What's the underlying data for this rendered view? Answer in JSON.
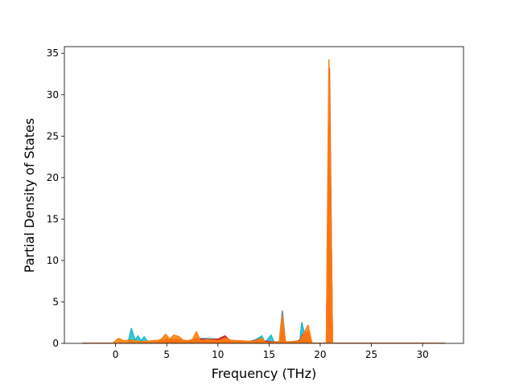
{
  "chart_data": {
    "type": "area",
    "title": "",
    "xlabel": "Frequency (THz)",
    "ylabel": "Partial Density of States",
    "xlim": [
      -5.0,
      34.0
    ],
    "ylim": [
      0,
      35.8
    ],
    "xticks": [
      0,
      5,
      10,
      15,
      20,
      25,
      30
    ],
    "yticks": [
      0,
      5,
      10,
      15,
      20,
      25,
      30,
      35
    ],
    "grid": false,
    "legend": "none",
    "series": [
      {
        "color": "#17becf",
        "points": [
          [
            -3.2,
            0
          ],
          [
            1.2,
            0
          ],
          [
            1.55,
            1.8
          ],
          [
            1.9,
            0.4
          ],
          [
            2.2,
            0.9
          ],
          [
            2.5,
            0.3
          ],
          [
            2.8,
            0.8
          ],
          [
            3.2,
            0.1
          ],
          [
            4.0,
            0.2
          ],
          [
            4.4,
            0.5
          ],
          [
            4.8,
            0.2
          ],
          [
            5.3,
            0.5
          ],
          [
            6.0,
            0.3
          ],
          [
            7.0,
            0.2
          ],
          [
            8.0,
            0.4
          ],
          [
            9.0,
            0.3
          ],
          [
            10.0,
            0.2
          ],
          [
            11.0,
            0.3
          ],
          [
            12.5,
            0.2
          ],
          [
            13.5,
            0.3
          ],
          [
            14.3,
            0.9
          ],
          [
            14.6,
            0.1
          ],
          [
            15.2,
            1.0
          ],
          [
            15.5,
            0.1
          ],
          [
            16.0,
            0.1
          ],
          [
            16.3,
            1.8
          ],
          [
            16.6,
            0.1
          ],
          [
            18.0,
            0.2
          ],
          [
            18.2,
            2.5
          ],
          [
            18.5,
            1.0
          ],
          [
            18.8,
            0.4
          ],
          [
            19.2,
            0
          ],
          [
            20.7,
            0
          ],
          [
            20.9,
            13.0
          ],
          [
            21.1,
            0
          ],
          [
            32.2,
            0
          ]
        ]
      },
      {
        "color": "#7f7f7f",
        "points": [
          [
            -3.2,
            0
          ],
          [
            3.5,
            0
          ],
          [
            4.0,
            0.3
          ],
          [
            5.0,
            0.3
          ],
          [
            6.0,
            0.5
          ],
          [
            7.0,
            0.3
          ],
          [
            8.0,
            0.6
          ],
          [
            9.0,
            0.6
          ],
          [
            10.0,
            0.5
          ],
          [
            11.0,
            0.4
          ],
          [
            12.0,
            0.3
          ],
          [
            13.0,
            0.2
          ],
          [
            14.2,
            0.6
          ],
          [
            14.5,
            0.1
          ],
          [
            16.0,
            0.2
          ],
          [
            16.3,
            3.9
          ],
          [
            16.6,
            0.2
          ],
          [
            17.5,
            0
          ],
          [
            18.2,
            0.6
          ],
          [
            18.6,
            0.4
          ],
          [
            19.2,
            0
          ],
          [
            20.6,
            0
          ],
          [
            20.9,
            30.0
          ],
          [
            21.2,
            0
          ],
          [
            32.2,
            0
          ]
        ]
      },
      {
        "color": "#d62728",
        "points": [
          [
            -3.2,
            0
          ],
          [
            4.0,
            0
          ],
          [
            5.0,
            0.6
          ],
          [
            6.0,
            0.4
          ],
          [
            7.0,
            0.3
          ],
          [
            8.0,
            0.5
          ],
          [
            9.0,
            0.4
          ],
          [
            10.0,
            0.5
          ],
          [
            10.7,
            0.9
          ],
          [
            11.2,
            0.3
          ],
          [
            12.0,
            0.3
          ],
          [
            13.0,
            0.2
          ],
          [
            14.3,
            0.3
          ],
          [
            16.0,
            0.1
          ],
          [
            16.3,
            2.6
          ],
          [
            16.6,
            0.1
          ],
          [
            18.0,
            0.3
          ],
          [
            18.3,
            1.1
          ],
          [
            18.8,
            1.4
          ],
          [
            19.2,
            0
          ],
          [
            20.6,
            0
          ],
          [
            20.9,
            33.2
          ],
          [
            21.2,
            0
          ],
          [
            32.2,
            0
          ]
        ]
      },
      {
        "color": "#ff7f0e",
        "points": [
          [
            -3.2,
            0
          ],
          [
            -0.3,
            0
          ],
          [
            0.3,
            0.6
          ],
          [
            0.8,
            0.3
          ],
          [
            1.5,
            0.4
          ],
          [
            2.5,
            0.2
          ],
          [
            3.5,
            0.3
          ],
          [
            4.4,
            0.4
          ],
          [
            4.9,
            1.1
          ],
          [
            5.3,
            0.5
          ],
          [
            5.7,
            1.0
          ],
          [
            6.2,
            0.8
          ],
          [
            6.7,
            0.3
          ],
          [
            7.5,
            0.4
          ],
          [
            7.9,
            1.4
          ],
          [
            8.3,
            0.3
          ],
          [
            9.0,
            0.4
          ],
          [
            10.0,
            0.3
          ],
          [
            10.8,
            0.6
          ],
          [
            11.5,
            0.3
          ],
          [
            12.5,
            0.3
          ],
          [
            13.5,
            0.2
          ],
          [
            14.3,
            0.6
          ],
          [
            14.6,
            0.1
          ],
          [
            16.0,
            0.1
          ],
          [
            16.3,
            3.2
          ],
          [
            16.6,
            0.2
          ],
          [
            18.0,
            0.2
          ],
          [
            18.3,
            0.9
          ],
          [
            18.8,
            2.2
          ],
          [
            19.2,
            0
          ],
          [
            20.6,
            0
          ],
          [
            20.85,
            34.2
          ],
          [
            21.2,
            0
          ],
          [
            32.2,
            0
          ]
        ]
      }
    ]
  }
}
